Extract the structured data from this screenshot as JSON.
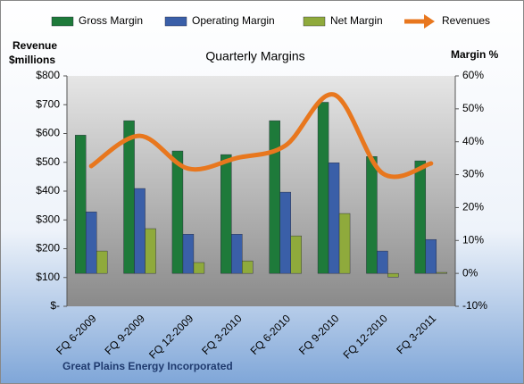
{
  "chart_data": {
    "type": "bar-line",
    "title": "Quarterly Margins",
    "y_label": "Revenue $millions",
    "y2_label": "Margin %",
    "footer": "Great Plains Energy Incorporated",
    "categories": [
      "FQ 6-2009",
      "FQ 9-2009",
      "FQ 12-2009",
      "FQ 3-2010",
      "FQ 6-2010",
      "FQ 9-2010",
      "FQ 12-2010",
      "FQ 3-2011"
    ],
    "series": [
      {
        "name": "Gross Margin",
        "color": "#1e7a3a",
        "axis": "y2",
        "kind": "bar",
        "values": [
          42,
          46.4,
          37.2,
          36.1,
          46.4,
          52,
          35.5,
          34.2
        ]
      },
      {
        "name": "Operating Margin",
        "color": "#3a5fa8",
        "axis": "y2",
        "kind": "bar",
        "values": [
          18.7,
          25.8,
          11.9,
          11.9,
          24.7,
          33.6,
          6.8,
          10.3
        ]
      },
      {
        "name": "Net Margin",
        "color": "#8faa3c",
        "axis": "y2",
        "kind": "bar",
        "values": [
          6.8,
          13.6,
          3.3,
          3.8,
          11.4,
          18.2,
          -1.1,
          0.3
        ]
      },
      {
        "name": "Revenues",
        "color": "#e8771e",
        "axis": "y",
        "kind": "line",
        "values": [
          487,
          592,
          478,
          515,
          558,
          735,
          462,
          496
        ]
      }
    ],
    "ylim": [
      0,
      800
    ],
    "yticks": [
      {
        "value": 0,
        "label": "$-"
      },
      {
        "value": 100,
        "label": "$100"
      },
      {
        "value": 200,
        "label": "$200"
      },
      {
        "value": 300,
        "label": "$300"
      },
      {
        "value": 400,
        "label": "$400"
      },
      {
        "value": 500,
        "label": "$500"
      },
      {
        "value": 600,
        "label": "$600"
      },
      {
        "value": 700,
        "label": "$700"
      },
      {
        "value": 800,
        "label": "$800"
      }
    ],
    "y2lim": [
      -10,
      60
    ],
    "y2ticks": [
      {
        "value": -10,
        "label": "-10%"
      },
      {
        "value": 0,
        "label": "0%"
      },
      {
        "value": 10,
        "label": "10%"
      },
      {
        "value": 20,
        "label": "20%"
      },
      {
        "value": 30,
        "label": "30%"
      },
      {
        "value": 40,
        "label": "40%"
      },
      {
        "value": 50,
        "label": "50%"
      },
      {
        "value": 60,
        "label": "60%"
      }
    ]
  }
}
